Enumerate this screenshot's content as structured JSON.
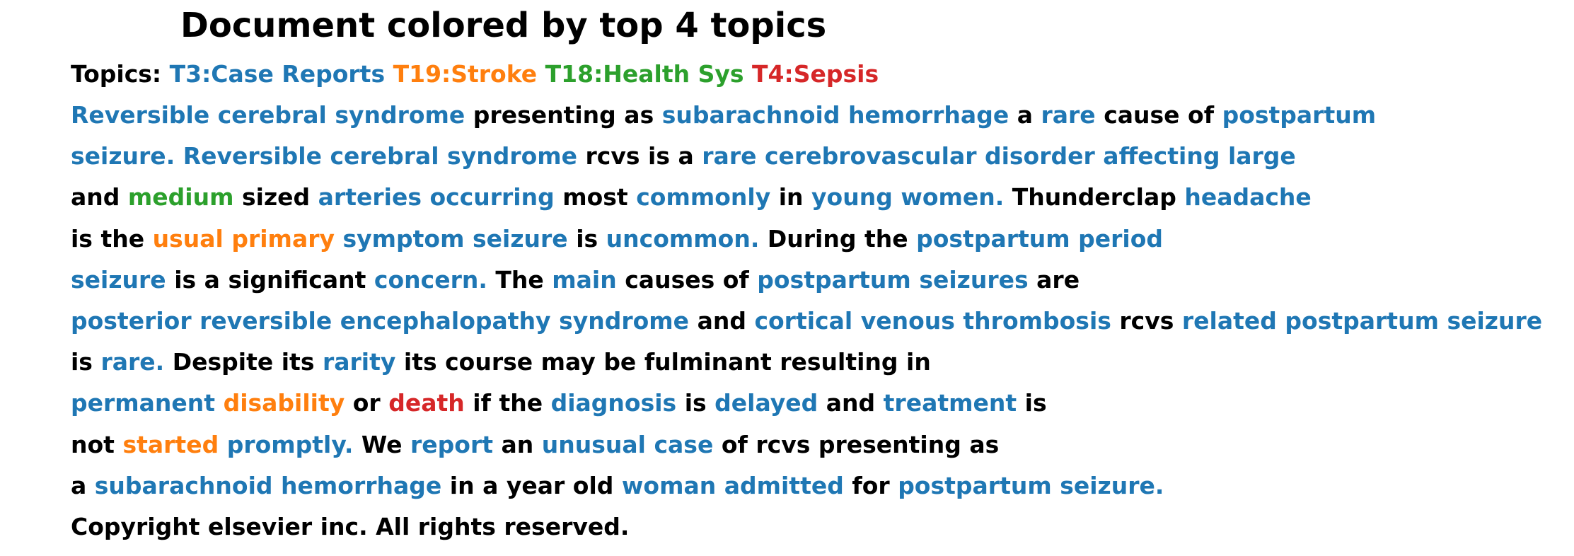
{
  "title": "Document colored by top 4 topics",
  "colors": {
    "default": "#000000",
    "T3": "#1f77b4",
    "T19": "#ff7f0e",
    "T18": "#2ca02c",
    "T4": "#d62728"
  },
  "legend": {
    "label": "Topics:",
    "items": [
      {
        "text": "T3:Case Reports",
        "topic": "T3"
      },
      {
        "text": "T19:Stroke",
        "topic": "T19"
      },
      {
        "text": "T18:Health Sys",
        "topic": "T18"
      },
      {
        "text": "T4:Sepsis",
        "topic": "T4"
      }
    ]
  },
  "lines": [
    [
      [
        "Reversible",
        "T3"
      ],
      [
        "cerebral",
        "T3"
      ],
      [
        "syndrome",
        "T3"
      ],
      [
        "presenting",
        ""
      ],
      [
        "as",
        ""
      ],
      [
        "subarachnoid",
        "T3"
      ],
      [
        "hemorrhage",
        "T3"
      ],
      [
        "a",
        ""
      ],
      [
        "rare",
        "T3"
      ],
      [
        "cause",
        ""
      ],
      [
        "of",
        ""
      ],
      [
        "postpartum",
        "T3"
      ]
    ],
    [
      [
        "seizure.",
        "T3"
      ],
      [
        "Reversible",
        "T3"
      ],
      [
        "cerebral",
        "T3"
      ],
      [
        "syndrome",
        "T3"
      ],
      [
        "rcvs",
        ""
      ],
      [
        "is",
        ""
      ],
      [
        "a",
        ""
      ],
      [
        "rare",
        "T3"
      ],
      [
        "cerebrovascular",
        "T3"
      ],
      [
        "disorder",
        "T3"
      ],
      [
        "affecting",
        "T3"
      ],
      [
        "large",
        "T3"
      ]
    ],
    [
      [
        "and",
        ""
      ],
      [
        "medium",
        "T18"
      ],
      [
        "sized",
        ""
      ],
      [
        "arteries",
        "T3"
      ],
      [
        "occurring",
        "T3"
      ],
      [
        "most",
        ""
      ],
      [
        "commonly",
        "T3"
      ],
      [
        "in",
        ""
      ],
      [
        "young",
        "T3"
      ],
      [
        "women.",
        "T3"
      ],
      [
        "Thunderclap",
        ""
      ],
      [
        "headache",
        "T3"
      ]
    ],
    [
      [
        "is",
        ""
      ],
      [
        "the",
        ""
      ],
      [
        "usual",
        "T19"
      ],
      [
        "primary",
        "T19"
      ],
      [
        "symptom",
        "T3"
      ],
      [
        "seizure",
        "T3"
      ],
      [
        "is",
        ""
      ],
      [
        "uncommon.",
        "T3"
      ],
      [
        "During",
        ""
      ],
      [
        "the",
        ""
      ],
      [
        "postpartum",
        "T3"
      ],
      [
        "period",
        "T3"
      ]
    ],
    [
      [
        "seizure",
        "T3"
      ],
      [
        "is",
        ""
      ],
      [
        "a",
        ""
      ],
      [
        "significant",
        ""
      ],
      [
        "concern.",
        "T3"
      ],
      [
        "The",
        ""
      ],
      [
        "main",
        "T3"
      ],
      [
        "causes",
        ""
      ],
      [
        "of",
        ""
      ],
      [
        "postpartum",
        "T3"
      ],
      [
        "seizures",
        "T3"
      ],
      [
        "are",
        ""
      ]
    ],
    [
      [
        "posterior",
        "T3"
      ],
      [
        "reversible",
        "T3"
      ],
      [
        "encephalopathy",
        "T3"
      ],
      [
        "syndrome",
        "T3"
      ],
      [
        "and",
        ""
      ],
      [
        "cortical",
        "T3"
      ],
      [
        "venous",
        "T3"
      ],
      [
        "thrombosis",
        "T3"
      ],
      [
        "rcvs",
        ""
      ],
      [
        "related",
        "T3"
      ],
      [
        "postpartum",
        "T3"
      ],
      [
        "seizure",
        "T3"
      ]
    ],
    [
      [
        "is",
        ""
      ],
      [
        "rare.",
        "T3"
      ],
      [
        "Despite",
        ""
      ],
      [
        "its",
        ""
      ],
      [
        "rarity",
        "T3"
      ],
      [
        "its",
        ""
      ],
      [
        "course",
        ""
      ],
      [
        "may",
        ""
      ],
      [
        "be",
        ""
      ],
      [
        "fulminant",
        ""
      ],
      [
        "resulting",
        ""
      ],
      [
        "in",
        ""
      ]
    ],
    [
      [
        "permanent",
        "T3"
      ],
      [
        "disability",
        "T19"
      ],
      [
        "or",
        ""
      ],
      [
        "death",
        "T4"
      ],
      [
        "if",
        ""
      ],
      [
        "the",
        ""
      ],
      [
        "diagnosis",
        "T3"
      ],
      [
        "is",
        ""
      ],
      [
        "delayed",
        "T3"
      ],
      [
        "and",
        ""
      ],
      [
        "treatment",
        "T3"
      ],
      [
        "is",
        ""
      ]
    ],
    [
      [
        "not",
        ""
      ],
      [
        "started",
        "T19"
      ],
      [
        "promptly.",
        "T3"
      ],
      [
        "We",
        ""
      ],
      [
        "report",
        "T3"
      ],
      [
        "an",
        ""
      ],
      [
        "unusual",
        "T3"
      ],
      [
        "case",
        "T3"
      ],
      [
        "of",
        ""
      ],
      [
        "rcvs",
        ""
      ],
      [
        "presenting",
        ""
      ],
      [
        "as",
        ""
      ]
    ],
    [
      [
        "a",
        ""
      ],
      [
        "subarachnoid",
        "T3"
      ],
      [
        "hemorrhage",
        "T3"
      ],
      [
        "in",
        ""
      ],
      [
        "a",
        ""
      ],
      [
        "year",
        ""
      ],
      [
        "old",
        ""
      ],
      [
        "woman",
        "T3"
      ],
      [
        "admitted",
        "T3"
      ],
      [
        "for",
        ""
      ],
      [
        "postpartum",
        "T3"
      ],
      [
        "seizure.",
        "T3"
      ]
    ],
    [
      [
        "Copyright",
        ""
      ],
      [
        "elsevier",
        ""
      ],
      [
        "inc.",
        ""
      ],
      [
        "All",
        ""
      ],
      [
        "rights",
        ""
      ],
      [
        "reserved.",
        ""
      ]
    ]
  ]
}
